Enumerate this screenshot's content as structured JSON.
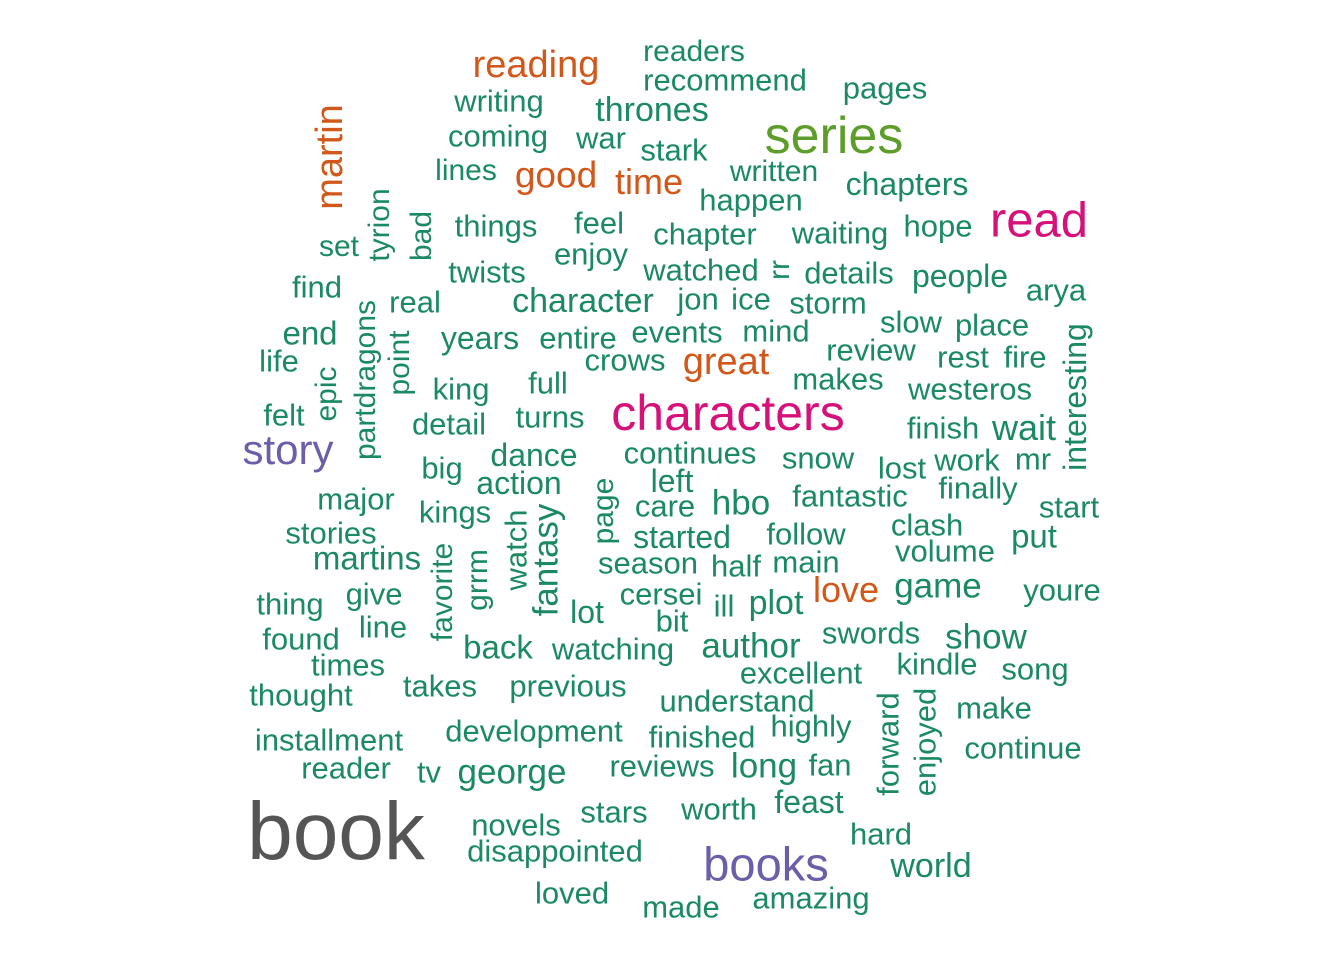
{
  "palette": {
    "dark": "#555555",
    "purple": "#6a5fa8",
    "pink": "#d6127a",
    "green": "#5d9e2b",
    "orange": "#d1581a",
    "teal": "#1b8a62"
  },
  "words": [
    {
      "text": "book",
      "color": "dark",
      "weight": 6
    },
    {
      "text": "series",
      "color": "green",
      "weight": 5
    },
    {
      "text": "characters",
      "color": "pink",
      "weight": 5
    },
    {
      "text": "read",
      "color": "pink",
      "weight": 4
    },
    {
      "text": "books",
      "color": "purple",
      "weight": 4
    },
    {
      "text": "story",
      "color": "purple",
      "weight": 4
    },
    {
      "text": "martin",
      "color": "orange",
      "weight": 3
    },
    {
      "text": "reading",
      "color": "orange",
      "weight": 3
    },
    {
      "text": "great",
      "color": "orange",
      "weight": 3
    },
    {
      "text": "good",
      "color": "orange",
      "weight": 3
    },
    {
      "text": "time",
      "color": "orange",
      "weight": 3
    },
    {
      "text": "love",
      "color": "orange",
      "weight": 3
    },
    {
      "text": "readers",
      "color": "teal",
      "weight": 1
    },
    {
      "text": "recommend",
      "color": "teal",
      "weight": 1
    },
    {
      "text": "pages",
      "color": "teal",
      "weight": 1
    },
    {
      "text": "writing",
      "color": "teal",
      "weight": 1
    },
    {
      "text": "thrones",
      "color": "teal",
      "weight": 2
    },
    {
      "text": "coming",
      "color": "teal",
      "weight": 1
    },
    {
      "text": "war",
      "color": "teal",
      "weight": 1
    },
    {
      "text": "stark",
      "color": "teal",
      "weight": 1
    },
    {
      "text": "lines",
      "color": "teal",
      "weight": 1
    },
    {
      "text": "written",
      "color": "teal",
      "weight": 1
    },
    {
      "text": "chapters",
      "color": "teal",
      "weight": 1
    },
    {
      "text": "happen",
      "color": "teal",
      "weight": 1
    },
    {
      "text": "hope",
      "color": "teal",
      "weight": 1
    },
    {
      "text": "tyrion",
      "color": "teal",
      "weight": 1
    },
    {
      "text": "bad",
      "color": "teal",
      "weight": 1
    },
    {
      "text": "things",
      "color": "teal",
      "weight": 1
    },
    {
      "text": "feel",
      "color": "teal",
      "weight": 1
    },
    {
      "text": "chapter",
      "color": "teal",
      "weight": 1
    },
    {
      "text": "waiting",
      "color": "teal",
      "weight": 1
    },
    {
      "text": "set",
      "color": "teal",
      "weight": 1
    },
    {
      "text": "enjoy",
      "color": "teal",
      "weight": 1
    },
    {
      "text": "twists",
      "color": "teal",
      "weight": 1
    },
    {
      "text": "watched",
      "color": "teal",
      "weight": 1
    },
    {
      "text": "rr",
      "color": "teal",
      "weight": 1
    },
    {
      "text": "details",
      "color": "teal",
      "weight": 1
    },
    {
      "text": "people",
      "color": "teal",
      "weight": 1
    },
    {
      "text": "find",
      "color": "teal",
      "weight": 1
    },
    {
      "text": "arya",
      "color": "teal",
      "weight": 1
    },
    {
      "text": "real",
      "color": "teal",
      "weight": 1
    },
    {
      "text": "character",
      "color": "teal",
      "weight": 2
    },
    {
      "text": "jon",
      "color": "teal",
      "weight": 1
    },
    {
      "text": "ice",
      "color": "teal",
      "weight": 1
    },
    {
      "text": "storm",
      "color": "teal",
      "weight": 1
    },
    {
      "text": "end",
      "color": "teal",
      "weight": 1
    },
    {
      "text": "slow",
      "color": "teal",
      "weight": 1
    },
    {
      "text": "place",
      "color": "teal",
      "weight": 1
    },
    {
      "text": "years",
      "color": "teal",
      "weight": 1
    },
    {
      "text": "entire",
      "color": "teal",
      "weight": 1
    },
    {
      "text": "events",
      "color": "teal",
      "weight": 1
    },
    {
      "text": "mind",
      "color": "teal",
      "weight": 1
    },
    {
      "text": "interesting",
      "color": "teal",
      "weight": 1
    },
    {
      "text": "partdragons",
      "color": "teal",
      "weight": 1
    },
    {
      "text": "point",
      "color": "teal",
      "weight": 1
    },
    {
      "text": "life",
      "color": "teal",
      "weight": 1
    },
    {
      "text": "crows",
      "color": "teal",
      "weight": 1
    },
    {
      "text": "review",
      "color": "teal",
      "weight": 1
    },
    {
      "text": "rest",
      "color": "teal",
      "weight": 1
    },
    {
      "text": "fire",
      "color": "teal",
      "weight": 1
    },
    {
      "text": "epic",
      "color": "teal",
      "weight": 1
    },
    {
      "text": "king",
      "color": "teal",
      "weight": 1
    },
    {
      "text": "full",
      "color": "teal",
      "weight": 1
    },
    {
      "text": "makes",
      "color": "teal",
      "weight": 1
    },
    {
      "text": "westeros",
      "color": "teal",
      "weight": 1
    },
    {
      "text": "felt",
      "color": "teal",
      "weight": 1
    },
    {
      "text": "detail",
      "color": "teal",
      "weight": 1
    },
    {
      "text": "turns",
      "color": "teal",
      "weight": 1
    },
    {
      "text": "finish",
      "color": "teal",
      "weight": 1
    },
    {
      "text": "wait",
      "color": "teal",
      "weight": 2
    },
    {
      "text": "dance",
      "color": "teal",
      "weight": 1
    },
    {
      "text": "continues",
      "color": "teal",
      "weight": 1
    },
    {
      "text": "snow",
      "color": "teal",
      "weight": 1
    },
    {
      "text": "lost",
      "color": "teal",
      "weight": 1
    },
    {
      "text": "work",
      "color": "teal",
      "weight": 1
    },
    {
      "text": "mr",
      "color": "teal",
      "weight": 1
    },
    {
      "text": "big",
      "color": "teal",
      "weight": 1
    },
    {
      "text": "left",
      "color": "teal",
      "weight": 1
    },
    {
      "text": "action",
      "color": "teal",
      "weight": 1
    },
    {
      "text": "page",
      "color": "teal",
      "weight": 1
    },
    {
      "text": "finally",
      "color": "teal",
      "weight": 1
    },
    {
      "text": "major",
      "color": "teal",
      "weight": 1
    },
    {
      "text": "care",
      "color": "teal",
      "weight": 1
    },
    {
      "text": "hbo",
      "color": "teal",
      "weight": 2
    },
    {
      "text": "fantastic",
      "color": "teal",
      "weight": 1
    },
    {
      "text": "start",
      "color": "teal",
      "weight": 1
    },
    {
      "text": "kings",
      "color": "teal",
      "weight": 1
    },
    {
      "text": "fantasy",
      "color": "teal",
      "weight": 2
    },
    {
      "text": "watch",
      "color": "teal",
      "weight": 1
    },
    {
      "text": "stories",
      "color": "teal",
      "weight": 1
    },
    {
      "text": "started",
      "color": "teal",
      "weight": 1
    },
    {
      "text": "follow",
      "color": "teal",
      "weight": 1
    },
    {
      "text": "clash",
      "color": "teal",
      "weight": 1
    },
    {
      "text": "put",
      "color": "teal",
      "weight": 1
    },
    {
      "text": "volume",
      "color": "teal",
      "weight": 1
    },
    {
      "text": "martins",
      "color": "teal",
      "weight": 1
    },
    {
      "text": "season",
      "color": "teal",
      "weight": 1
    },
    {
      "text": "half",
      "color": "teal",
      "weight": 1
    },
    {
      "text": "main",
      "color": "teal",
      "weight": 1
    },
    {
      "text": "favorite",
      "color": "teal",
      "weight": 1
    },
    {
      "text": "grrm",
      "color": "teal",
      "weight": 1
    },
    {
      "text": "game",
      "color": "teal",
      "weight": 2
    },
    {
      "text": "give",
      "color": "teal",
      "weight": 1
    },
    {
      "text": "cersei",
      "color": "teal",
      "weight": 1
    },
    {
      "text": "youre",
      "color": "teal",
      "weight": 1
    },
    {
      "text": "thing",
      "color": "teal",
      "weight": 1
    },
    {
      "text": "lot",
      "color": "teal",
      "weight": 1
    },
    {
      "text": "ill",
      "color": "teal",
      "weight": 1
    },
    {
      "text": "plot",
      "color": "teal",
      "weight": 2
    },
    {
      "text": "line",
      "color": "teal",
      "weight": 1
    },
    {
      "text": "bit",
      "color": "teal",
      "weight": 1
    },
    {
      "text": "swords",
      "color": "teal",
      "weight": 1
    },
    {
      "text": "show",
      "color": "teal",
      "weight": 2
    },
    {
      "text": "found",
      "color": "teal",
      "weight": 1
    },
    {
      "text": "back",
      "color": "teal",
      "weight": 1
    },
    {
      "text": "watching",
      "color": "teal",
      "weight": 1
    },
    {
      "text": "author",
      "color": "teal",
      "weight": 2
    },
    {
      "text": "times",
      "color": "teal",
      "weight": 1
    },
    {
      "text": "kindle",
      "color": "teal",
      "weight": 1
    },
    {
      "text": "excellent",
      "color": "teal",
      "weight": 1
    },
    {
      "text": "song",
      "color": "teal",
      "weight": 1
    },
    {
      "text": "thought",
      "color": "teal",
      "weight": 1
    },
    {
      "text": "takes",
      "color": "teal",
      "weight": 1
    },
    {
      "text": "previous",
      "color": "teal",
      "weight": 1
    },
    {
      "text": "understand",
      "color": "teal",
      "weight": 1
    },
    {
      "text": "forward",
      "color": "teal",
      "weight": 1
    },
    {
      "text": "enjoyed",
      "color": "teal",
      "weight": 1
    },
    {
      "text": "make",
      "color": "teal",
      "weight": 1
    },
    {
      "text": "installment",
      "color": "teal",
      "weight": 1
    },
    {
      "text": "development",
      "color": "teal",
      "weight": 1
    },
    {
      "text": "finished",
      "color": "teal",
      "weight": 1
    },
    {
      "text": "highly",
      "color": "teal",
      "weight": 1
    },
    {
      "text": "continue",
      "color": "teal",
      "weight": 1
    },
    {
      "text": "reader",
      "color": "teal",
      "weight": 1
    },
    {
      "text": "tv",
      "color": "teal",
      "weight": 1
    },
    {
      "text": "george",
      "color": "teal",
      "weight": 2
    },
    {
      "text": "reviews",
      "color": "teal",
      "weight": 1
    },
    {
      "text": "long",
      "color": "teal",
      "weight": 2
    },
    {
      "text": "fan",
      "color": "teal",
      "weight": 1
    },
    {
      "text": "stars",
      "color": "teal",
      "weight": 1
    },
    {
      "text": "worth",
      "color": "teal",
      "weight": 1
    },
    {
      "text": "feast",
      "color": "teal",
      "weight": 1
    },
    {
      "text": "novels",
      "color": "teal",
      "weight": 1
    },
    {
      "text": "hard",
      "color": "teal",
      "weight": 1
    },
    {
      "text": "disappointed",
      "color": "teal",
      "weight": 1
    },
    {
      "text": "world",
      "color": "teal",
      "weight": 2
    },
    {
      "text": "loved",
      "color": "teal",
      "weight": 1
    },
    {
      "text": "amazing",
      "color": "teal",
      "weight": 1
    },
    {
      "text": "made",
      "color": "teal",
      "weight": 1
    }
  ]
}
